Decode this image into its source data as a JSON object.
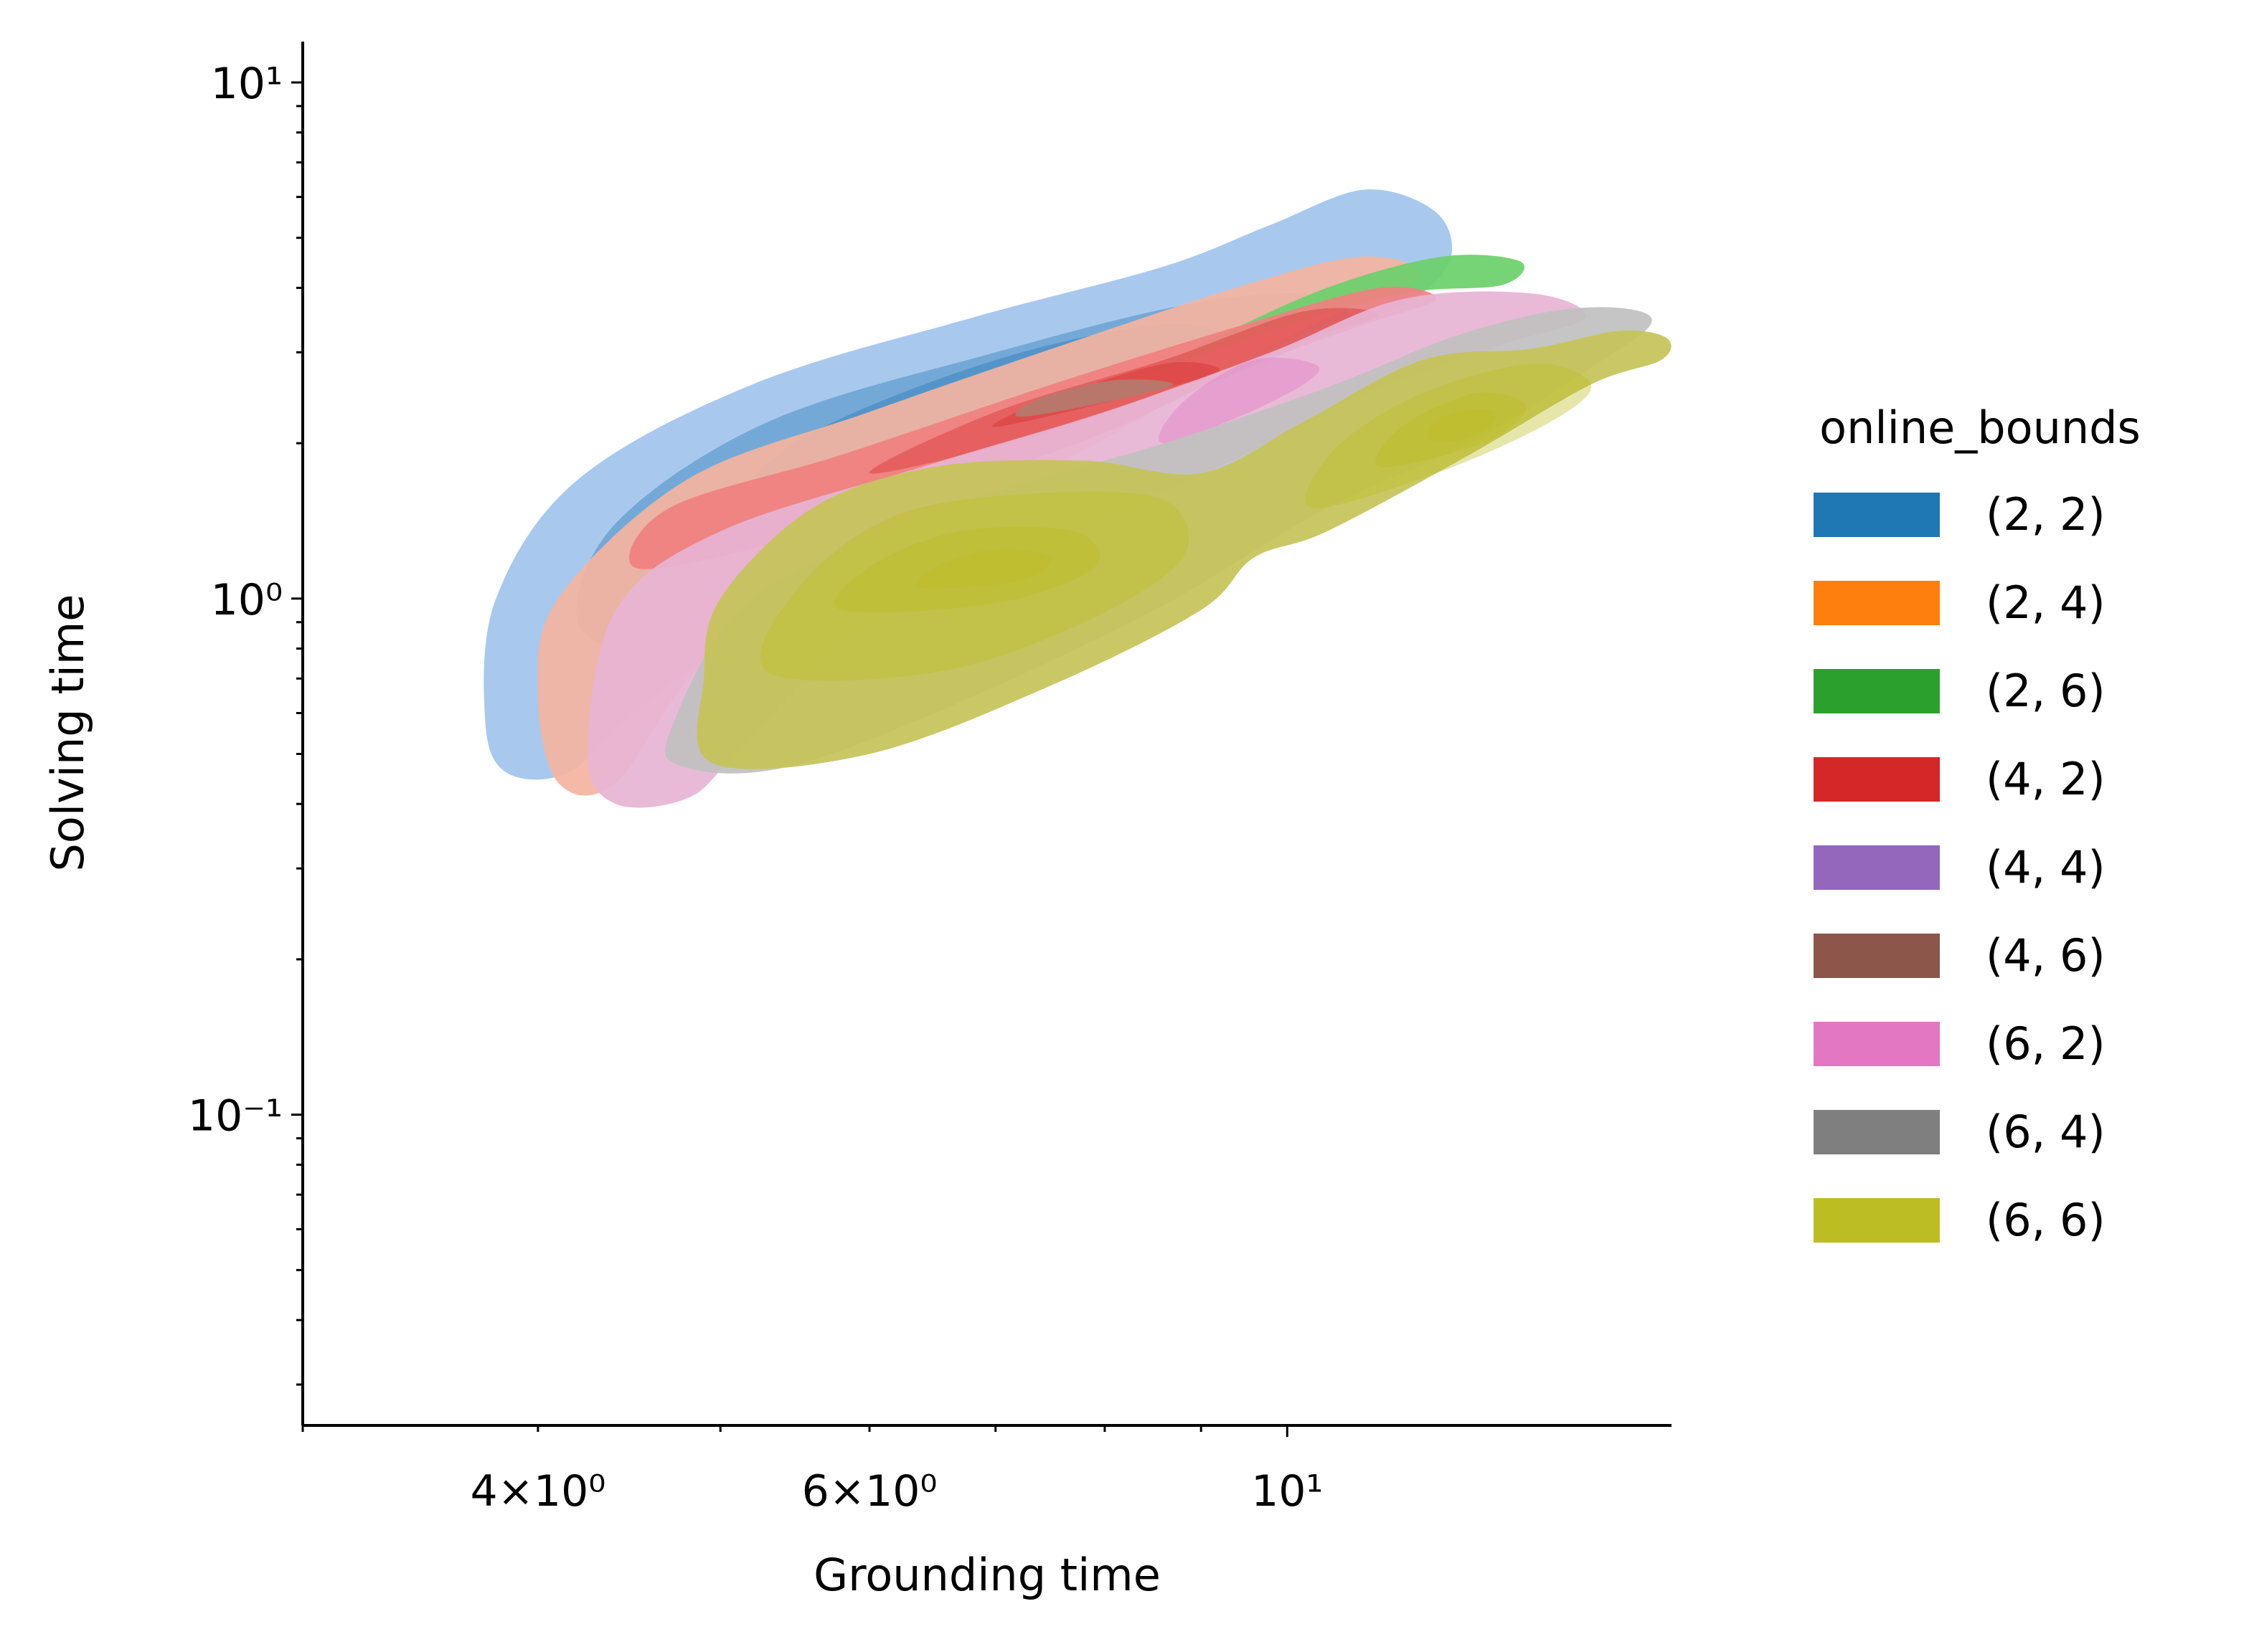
{
  "chart_data": {
    "type": "kde-contour",
    "xlabel": "Grounding time",
    "ylabel": "Solving time",
    "xscale": "log",
    "yscale": "log",
    "xlim": [
      3.0,
      16.0
    ],
    "ylim": [
      0.025,
      12.0
    ],
    "x_ticks": [
      {
        "value": 4,
        "label": "4×10⁰"
      },
      {
        "value": 6,
        "label": "6×10⁰"
      },
      {
        "value": 10,
        "label": "10¹"
      }
    ],
    "y_ticks": [
      {
        "value": 0.1,
        "label": "10⁻¹"
      },
      {
        "value": 1,
        "label": "10⁰"
      },
      {
        "value": 10,
        "label": "10¹"
      }
    ],
    "legend": {
      "title": "online_bounds",
      "placement": "right"
    },
    "series": [
      {
        "name": "(2, 2)",
        "color": "#1f77b4",
        "fill": "#a1c4ec",
        "levels": [
          [
            [
              3.75,
              0.58
            ],
            [
              3.85,
              0.46
            ],
            [
              4.15,
              0.46
            ],
            [
              4.5,
              0.6
            ],
            [
              5.2,
              0.9
            ],
            [
              6.0,
              1.3
            ],
            [
              7.2,
              1.8
            ],
            [
              8.3,
              2.3
            ],
            [
              9.5,
              2.9
            ],
            [
              10.5,
              3.4
            ],
            [
              11.5,
              3.7
            ],
            [
              12.2,
              4.5
            ],
            [
              12.0,
              5.6
            ],
            [
              11.0,
              6.2
            ],
            [
              9.8,
              5.3
            ],
            [
              8.6,
              4.4
            ],
            [
              6.8,
              3.5
            ],
            [
              5.2,
              2.6
            ],
            [
              4.2,
              1.7
            ],
            [
              3.8,
              1.0
            ]
          ],
          [
            [
              4.2,
              0.9
            ],
            [
              4.6,
              0.82
            ],
            [
              5.6,
              1.2
            ],
            [
              7.0,
              1.75
            ],
            [
              8.6,
              2.4
            ],
            [
              10.0,
              3.0
            ],
            [
              10.8,
              3.5
            ],
            [
              10.2,
              3.9
            ],
            [
              8.8,
              3.7
            ],
            [
              7.0,
              3.0
            ],
            [
              5.3,
              2.2
            ],
            [
              4.4,
              1.4
            ]
          ],
          [
            [
              5.2,
              1.6
            ],
            [
              6.4,
              1.9
            ],
            [
              7.8,
              2.4
            ],
            [
              9.2,
              3.1
            ],
            [
              8.6,
              3.4
            ],
            [
              7.0,
              2.9
            ],
            [
              5.6,
              2.1
            ]
          ]
        ]
      },
      {
        "name": "(2, 4)",
        "color": "#ff7f0e",
        "fill": "#f4b4a0",
        "levels": [
          [
            [
              4.0,
              0.65
            ],
            [
              4.1,
              0.44
            ],
            [
              4.4,
              0.44
            ],
            [
              4.9,
              0.75
            ],
            [
              6.0,
              1.25
            ],
            [
              7.6,
              1.85
            ],
            [
              9.0,
              2.6
            ],
            [
              10.5,
              3.5
            ],
            [
              11.8,
              4.2
            ],
            [
              11.0,
              4.6
            ],
            [
              9.6,
              4.1
            ],
            [
              7.8,
              3.2
            ],
            [
              6.0,
              2.3
            ],
            [
              4.8,
              1.7
            ],
            [
              4.1,
              1.0
            ]
          ]
        ]
      },
      {
        "name": "(2, 6)",
        "color": "#2ca02c",
        "fill": "#6ad06a",
        "levels": [
          [
            [
              8.5,
              2.75
            ],
            [
              9.8,
              3.3
            ],
            [
              11.5,
              3.9
            ],
            [
              13.0,
              4.05
            ],
            [
              13.3,
              4.5
            ],
            [
              12.1,
              4.6
            ],
            [
              10.5,
              4.0
            ],
            [
              9.0,
              3.1
            ]
          ]
        ]
      },
      {
        "name": "(4, 2)",
        "color": "#d62728",
        "fill": "#f08080",
        "levels": [
          [
            [
              4.5,
              1.15
            ],
            [
              5.2,
              1.25
            ],
            [
              6.5,
              1.6
            ],
            [
              8.0,
              2.1
            ],
            [
              9.5,
              2.8
            ],
            [
              11.0,
              3.4
            ],
            [
              12.0,
              3.8
            ],
            [
              11.2,
              4.0
            ],
            [
              9.5,
              3.4
            ],
            [
              7.5,
              2.6
            ],
            [
              5.8,
              1.9
            ],
            [
              4.7,
              1.5
            ]
          ],
          [
            [
              6.0,
              1.75
            ],
            [
              7.3,
              2.05
            ],
            [
              8.8,
              2.6
            ],
            [
              10.3,
              3.2
            ],
            [
              11.2,
              3.55
            ],
            [
              10.2,
              3.6
            ],
            [
              8.6,
              2.9
            ],
            [
              7.0,
              2.3
            ]
          ],
          [
            [
              7.0,
              2.15
            ],
            [
              8.2,
              2.45
            ],
            [
              9.2,
              2.75
            ],
            [
              8.6,
              2.85
            ],
            [
              7.4,
              2.4
            ]
          ]
        ]
      },
      {
        "name": "(4, 4)",
        "color": "#9467bd",
        "fill": "#c9b0e0",
        "levels": []
      },
      {
        "name": "(4, 6)",
        "color": "#8c564b",
        "fill": "#b57a6e",
        "levels": [
          [
            [
              7.2,
              2.25
            ],
            [
              8.0,
              2.4
            ],
            [
              8.7,
              2.6
            ],
            [
              8.1,
              2.65
            ],
            [
              7.4,
              2.45
            ]
          ]
        ]
      },
      {
        "name": "(6, 2)",
        "color": "#e377c2",
        "fill": "#e7b4d4",
        "levels": [
          [
            [
              4.25,
              0.5
            ],
            [
              4.4,
              0.4
            ],
            [
              4.8,
              0.41
            ],
            [
              5.1,
              0.5
            ],
            [
              6.0,
              0.9
            ],
            [
              7.5,
              1.3
            ],
            [
              9.5,
              1.9
            ],
            [
              11.0,
              2.5
            ],
            [
              13.0,
              3.1
            ],
            [
              14.4,
              3.5
            ],
            [
              13.5,
              3.9
            ],
            [
              11.5,
              3.8
            ],
            [
              9.8,
              3.0
            ],
            [
              8.0,
              2.3
            ],
            [
              6.4,
              1.8
            ],
            [
              5.0,
              1.35
            ],
            [
              4.4,
              0.95
            ]
          ],
          [
            [
              8.6,
              2.0
            ],
            [
              9.8,
              2.4
            ],
            [
              10.4,
              2.8
            ],
            [
              9.6,
              2.9
            ],
            [
              8.8,
              2.4
            ]
          ]
        ]
      },
      {
        "name": "(6, 4)",
        "color": "#7f7f7f",
        "fill": "#c0c0c0",
        "levels": [
          [
            [
              4.7,
              0.55
            ],
            [
              4.8,
              0.47
            ],
            [
              5.4,
              0.47
            ],
            [
              6.5,
              0.6
            ],
            [
              8.5,
              0.95
            ],
            [
              10.5,
              1.5
            ],
            [
              12.5,
              2.0
            ],
            [
              14.5,
              2.8
            ],
            [
              15.6,
              3.4
            ],
            [
              15.1,
              3.65
            ],
            [
              13.8,
              3.6
            ],
            [
              12.2,
              3.2
            ],
            [
              10.6,
              2.6
            ],
            [
              8.6,
              2.0
            ],
            [
              6.6,
              1.5
            ],
            [
              5.2,
              1.0
            ]
          ]
        ]
      },
      {
        "name": "(6, 6)",
        "color": "#bcbd22",
        "fill": "#c4c358",
        "levels": [
          [
            [
              4.95,
              0.48
            ],
            [
              6.0,
              0.5
            ],
            [
              7.5,
              0.68
            ],
            [
              9.0,
              0.95
            ],
            [
              9.6,
              1.2
            ],
            [
              10.5,
              1.35
            ],
            [
              12.5,
              1.9
            ],
            [
              14.5,
              2.6
            ],
            [
              15.8,
              2.9
            ],
            [
              15.9,
              3.2
            ],
            [
              15.0,
              3.3
            ],
            [
              13.5,
              3.05
            ],
            [
              11.8,
              2.9
            ],
            [
              10.2,
              2.2
            ],
            [
              9.0,
              1.75
            ],
            [
              7.8,
              1.85
            ],
            [
              6.5,
              1.8
            ],
            [
              5.6,
              1.5
            ],
            [
              5.0,
              1.0
            ],
            [
              4.9,
              0.7
            ]
          ],
          [
            [
              5.3,
              0.72
            ],
            [
              6.5,
              0.72
            ],
            [
              7.8,
              0.9
            ],
            [
              8.8,
              1.2
            ],
            [
              8.6,
              1.55
            ],
            [
              7.4,
              1.6
            ],
            [
              6.2,
              1.45
            ],
            [
              5.5,
              1.05
            ]
          ],
          [
            [
              10.3,
              1.5
            ],
            [
              12.0,
              1.75
            ],
            [
              13.8,
              2.2
            ],
            [
              14.5,
              2.6
            ],
            [
              13.5,
              2.85
            ],
            [
              11.8,
              2.5
            ],
            [
              10.6,
              1.95
            ]
          ],
          [
            [
              5.8,
              0.95
            ],
            [
              7.0,
              0.98
            ],
            [
              7.9,
              1.15
            ],
            [
              7.7,
              1.35
            ],
            [
              6.7,
              1.35
            ],
            [
              6.0,
              1.15
            ]
          ],
          [
            [
              11.2,
              1.8
            ],
            [
              12.7,
              2.0
            ],
            [
              13.4,
              2.35
            ],
            [
              12.6,
              2.5
            ],
            [
              11.5,
              2.15
            ]
          ],
          [
            [
              6.4,
              1.05
            ],
            [
              7.2,
              1.08
            ],
            [
              7.5,
              1.2
            ],
            [
              7.0,
              1.25
            ],
            [
              6.5,
              1.15
            ]
          ],
          [
            [
              12.0,
              2.0
            ],
            [
              12.7,
              2.1
            ],
            [
              12.9,
              2.3
            ],
            [
              12.3,
              2.3
            ],
            [
              11.9,
              2.15
            ]
          ]
        ]
      }
    ]
  }
}
